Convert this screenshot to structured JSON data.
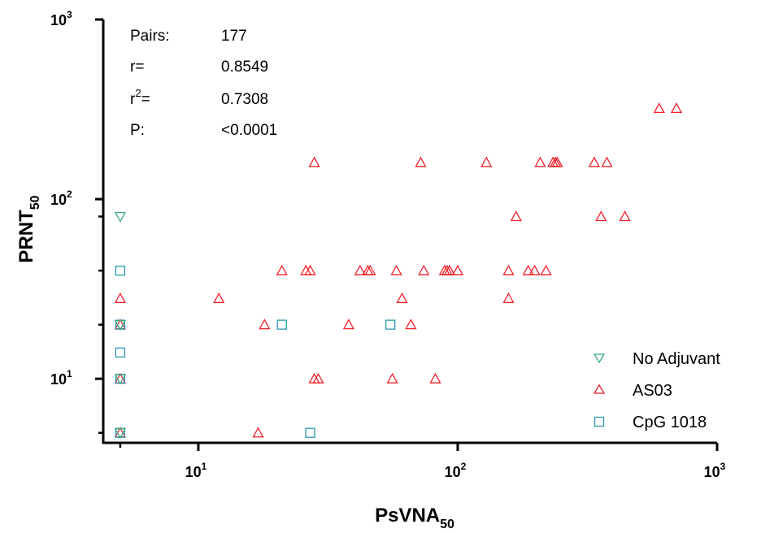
{
  "chart_data": {
    "type": "scatter",
    "xlabel": {
      "main": "PsVNA",
      "sub": "50"
    },
    "ylabel": {
      "main": "PRNT",
      "sub": "50"
    },
    "xscale": "log",
    "yscale": "log",
    "xlim": [
      4.3,
      1000
    ],
    "ylim": [
      4.4,
      1000
    ],
    "x_ticks": [
      {
        "value": 10,
        "base": "10",
        "exp": "1"
      },
      {
        "value": 100,
        "base": "10",
        "exp": "2"
      },
      {
        "value": 1000,
        "base": "10",
        "exp": "3"
      }
    ],
    "y_ticks": [
      {
        "value": 10,
        "base": "10",
        "exp": "1"
      },
      {
        "value": 100,
        "base": "10",
        "exp": "2"
      },
      {
        "value": 1000,
        "base": "10",
        "exp": "3"
      }
    ],
    "x_minor_ticks": [
      5
    ],
    "y_minor_ticks": [
      5,
      20,
      40,
      80
    ],
    "stats": {
      "rows": [
        {
          "label": "Pairs:",
          "value": "177"
        },
        {
          "label": "r=",
          "value": "0.8549"
        },
        {
          "label": "r",
          "label_sup": "2",
          "label_tail": "=",
          "value": "0.7308"
        },
        {
          "label": "P:",
          "value": "<0.0001"
        }
      ]
    },
    "legend_position": "bottom-right",
    "series": [
      {
        "name": "No Adjuvant",
        "marker": "triangle-down",
        "color": "#3aaa80",
        "points": [
          [
            5,
            80
          ],
          [
            5,
            20
          ],
          [
            5,
            10
          ],
          [
            5,
            5
          ]
        ]
      },
      {
        "name": "AS03",
        "marker": "triangle-up",
        "color": "#f0202a",
        "points": [
          [
            5,
            28
          ],
          [
            5,
            20
          ],
          [
            5,
            10
          ],
          [
            5,
            5
          ],
          [
            12,
            28
          ],
          [
            17,
            5
          ],
          [
            18,
            20
          ],
          [
            21,
            40
          ],
          [
            26,
            40
          ],
          [
            27,
            40
          ],
          [
            28,
            160
          ],
          [
            28,
            10
          ],
          [
            29,
            10
          ],
          [
            38,
            20
          ],
          [
            42,
            40
          ],
          [
            45,
            40
          ],
          [
            46,
            40
          ],
          [
            56,
            10
          ],
          [
            58,
            40
          ],
          [
            61,
            28
          ],
          [
            66,
            20
          ],
          [
            72,
            160
          ],
          [
            74,
            40
          ],
          [
            82,
            10
          ],
          [
            89,
            40
          ],
          [
            91,
            40
          ],
          [
            93,
            40
          ],
          [
            100,
            40
          ],
          [
            129,
            160
          ],
          [
            157,
            40
          ],
          [
            157,
            28
          ],
          [
            168,
            80
          ],
          [
            187,
            40
          ],
          [
            198,
            40
          ],
          [
            208,
            160
          ],
          [
            219,
            40
          ],
          [
            233,
            160
          ],
          [
            238,
            160
          ],
          [
            242,
            160
          ],
          [
            336,
            160
          ],
          [
            357,
            80
          ],
          [
            376,
            160
          ],
          [
            441,
            80
          ],
          [
            598,
            320
          ],
          [
            697,
            320
          ]
        ]
      },
      {
        "name": "CpG 1018",
        "marker": "square",
        "color": "#2a98b0",
        "points": [
          [
            5,
            40
          ],
          [
            5,
            20
          ],
          [
            5,
            14
          ],
          [
            5,
            10
          ],
          [
            5,
            5
          ],
          [
            21,
            20
          ],
          [
            27,
            5
          ],
          [
            55,
            20
          ]
        ]
      }
    ]
  }
}
